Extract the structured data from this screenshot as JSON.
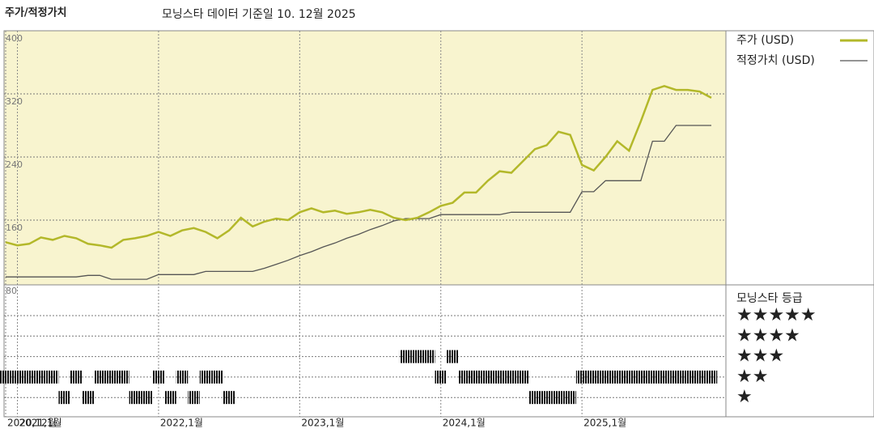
{
  "chart_data": {
    "type": "line",
    "title": "주가/적정가치",
    "subtitle": "모닝스타 데이터 기준일 10. 12월 2025",
    "x": [
      "2020-12",
      "2021-01",
      "2021-02",
      "2021-03",
      "2021-04",
      "2021-05",
      "2021-06",
      "2021-07",
      "2021-08",
      "2021-09",
      "2021-10",
      "2021-11",
      "2021-12",
      "2022-01",
      "2022-02",
      "2022-03",
      "2022-04",
      "2022-05",
      "2022-06",
      "2022-07",
      "2022-08",
      "2022-09",
      "2022-10",
      "2022-11",
      "2022-12",
      "2023-01",
      "2023-02",
      "2023-03",
      "2023-04",
      "2023-05",
      "2023-06",
      "2023-07",
      "2023-08",
      "2023-09",
      "2023-10",
      "2023-11",
      "2023-12",
      "2024-01",
      "2024-02",
      "2024-03",
      "2024-04",
      "2024-05",
      "2024-06",
      "2024-07",
      "2024-08",
      "2024-09",
      "2024-10",
      "2024-11",
      "2024-12",
      "2025-01",
      "2025-02",
      "2025-03",
      "2025-04",
      "2025-05",
      "2025-06",
      "2025-07",
      "2025-08",
      "2025-09",
      "2025-10",
      "2025-11",
      "2025-12"
    ],
    "series": [
      {
        "name": "주가 (USD)",
        "color": "#b3b82a",
        "values": [
          132,
          128,
          130,
          138,
          135,
          140,
          137,
          130,
          128,
          125,
          135,
          137,
          140,
          145,
          140,
          147,
          150,
          145,
          137,
          147,
          163,
          152,
          158,
          162,
          160,
          170,
          175,
          170,
          172,
          168,
          170,
          173,
          170,
          163,
          160,
          163,
          170,
          178,
          182,
          195,
          195,
          210,
          222,
          220,
          235,
          250,
          255,
          272,
          268,
          230,
          223,
          240,
          260,
          248,
          285,
          325,
          330,
          325,
          325,
          323,
          315
        ]
      },
      {
        "name": "적정가치 (USD)",
        "color": "#555555",
        "values": [
          88,
          88,
          88,
          88,
          88,
          88,
          88,
          90,
          90,
          85,
          85,
          85,
          85,
          91,
          91,
          91,
          91,
          95,
          95,
          95,
          95,
          95,
          99,
          104,
          109,
          115,
          120,
          126,
          131,
          137,
          142,
          148,
          153,
          159,
          162,
          162,
          162,
          167,
          167,
          167,
          167,
          167,
          167,
          170,
          170,
          170,
          170,
          170,
          170,
          196,
          196,
          210,
          210,
          210,
          210,
          260,
          260,
          280,
          280,
          280,
          280
        ]
      }
    ],
    "xlim": [
      "2020-12",
      "2025-12"
    ],
    "xticks": [
      {
        "value": "2020-12",
        "label": "2020,12월"
      },
      {
        "value": "2021-01",
        "label": "2021,1월"
      },
      {
        "value": "2022-01",
        "label": "2022,1월"
      },
      {
        "value": "2023-01",
        "label": "2023,1월"
      },
      {
        "value": "2024-01",
        "label": "2024,1월"
      },
      {
        "value": "2025-01",
        "label": "2025,1월"
      }
    ],
    "ylim": [
      80,
      400
    ],
    "yticks": [
      80,
      160,
      240,
      320,
      400
    ],
    "grid": true,
    "rating": {
      "title": "모닝스타 등급",
      "categories": [
        "★★★★★",
        "★★★★",
        "★★★",
        "★★",
        "★"
      ],
      "levels": [
        5,
        4,
        3,
        2,
        1
      ],
      "values": [
        2,
        2,
        2,
        2,
        2,
        1,
        2,
        1,
        2,
        2,
        2,
        1,
        1,
        2,
        1,
        2,
        1,
        2,
        2,
        1,
        null,
        null,
        null,
        null,
        null,
        null,
        null,
        null,
        null,
        null,
        null,
        null,
        null,
        null,
        3,
        3,
        3,
        2,
        3,
        2,
        2,
        2,
        2,
        2,
        2,
        1,
        1,
        1,
        1,
        2,
        2,
        2,
        2,
        2,
        2,
        2,
        2,
        2,
        2,
        2,
        2
      ]
    }
  }
}
